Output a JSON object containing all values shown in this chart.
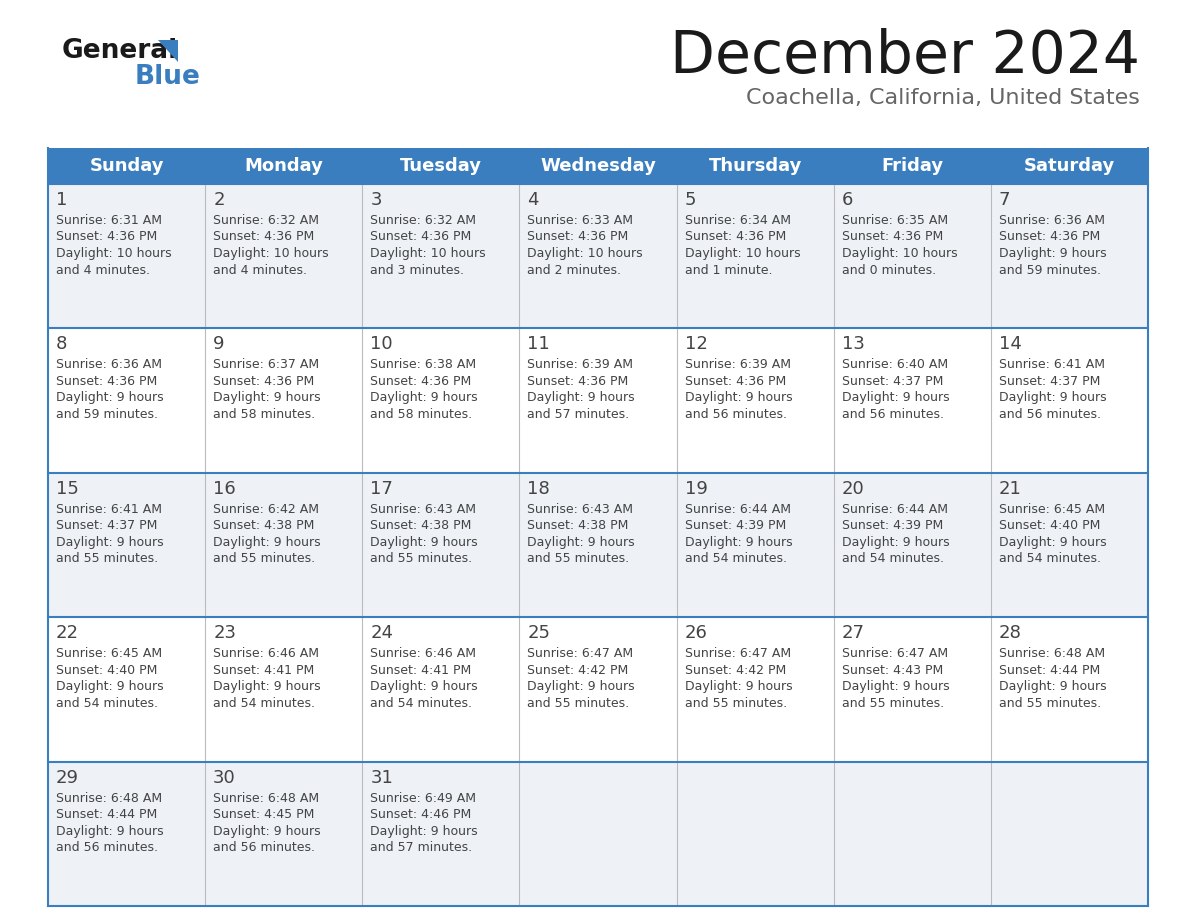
{
  "title": "December 2024",
  "subtitle": "Coachella, California, United States",
  "header_bg": "#3a7ebf",
  "header_text": "#ffffff",
  "day_headers": [
    "Sunday",
    "Monday",
    "Tuesday",
    "Wednesday",
    "Thursday",
    "Friday",
    "Saturday"
  ],
  "row_bg_even": "#eef2f7",
  "row_bg_odd": "#ffffff",
  "border_color": "#3a7ebf",
  "cell_border_color": "#aaaaaa",
  "text_color": "#444444",
  "weeks": [
    [
      {
        "day": 1,
        "sunrise": "6:31 AM",
        "sunset": "4:36 PM",
        "daylight_line1": "Daylight: 10 hours",
        "daylight_line2": "and 4 minutes."
      },
      {
        "day": 2,
        "sunrise": "6:32 AM",
        "sunset": "4:36 PM",
        "daylight_line1": "Daylight: 10 hours",
        "daylight_line2": "and 4 minutes."
      },
      {
        "day": 3,
        "sunrise": "6:32 AM",
        "sunset": "4:36 PM",
        "daylight_line1": "Daylight: 10 hours",
        "daylight_line2": "and 3 minutes."
      },
      {
        "day": 4,
        "sunrise": "6:33 AM",
        "sunset": "4:36 PM",
        "daylight_line1": "Daylight: 10 hours",
        "daylight_line2": "and 2 minutes."
      },
      {
        "day": 5,
        "sunrise": "6:34 AM",
        "sunset": "4:36 PM",
        "daylight_line1": "Daylight: 10 hours",
        "daylight_line2": "and 1 minute."
      },
      {
        "day": 6,
        "sunrise": "6:35 AM",
        "sunset": "4:36 PM",
        "daylight_line1": "Daylight: 10 hours",
        "daylight_line2": "and 0 minutes."
      },
      {
        "day": 7,
        "sunrise": "6:36 AM",
        "sunset": "4:36 PM",
        "daylight_line1": "Daylight: 9 hours",
        "daylight_line2": "and 59 minutes."
      }
    ],
    [
      {
        "day": 8,
        "sunrise": "6:36 AM",
        "sunset": "4:36 PM",
        "daylight_line1": "Daylight: 9 hours",
        "daylight_line2": "and 59 minutes."
      },
      {
        "day": 9,
        "sunrise": "6:37 AM",
        "sunset": "4:36 PM",
        "daylight_line1": "Daylight: 9 hours",
        "daylight_line2": "and 58 minutes."
      },
      {
        "day": 10,
        "sunrise": "6:38 AM",
        "sunset": "4:36 PM",
        "daylight_line1": "Daylight: 9 hours",
        "daylight_line2": "and 58 minutes."
      },
      {
        "day": 11,
        "sunrise": "6:39 AM",
        "sunset": "4:36 PM",
        "daylight_line1": "Daylight: 9 hours",
        "daylight_line2": "and 57 minutes."
      },
      {
        "day": 12,
        "sunrise": "6:39 AM",
        "sunset": "4:36 PM",
        "daylight_line1": "Daylight: 9 hours",
        "daylight_line2": "and 56 minutes."
      },
      {
        "day": 13,
        "sunrise": "6:40 AM",
        "sunset": "4:37 PM",
        "daylight_line1": "Daylight: 9 hours",
        "daylight_line2": "and 56 minutes."
      },
      {
        "day": 14,
        "sunrise": "6:41 AM",
        "sunset": "4:37 PM",
        "daylight_line1": "Daylight: 9 hours",
        "daylight_line2": "and 56 minutes."
      }
    ],
    [
      {
        "day": 15,
        "sunrise": "6:41 AM",
        "sunset": "4:37 PM",
        "daylight_line1": "Daylight: 9 hours",
        "daylight_line2": "and 55 minutes."
      },
      {
        "day": 16,
        "sunrise": "6:42 AM",
        "sunset": "4:38 PM",
        "daylight_line1": "Daylight: 9 hours",
        "daylight_line2": "and 55 minutes."
      },
      {
        "day": 17,
        "sunrise": "6:43 AM",
        "sunset": "4:38 PM",
        "daylight_line1": "Daylight: 9 hours",
        "daylight_line2": "and 55 minutes."
      },
      {
        "day": 18,
        "sunrise": "6:43 AM",
        "sunset": "4:38 PM",
        "daylight_line1": "Daylight: 9 hours",
        "daylight_line2": "and 55 minutes."
      },
      {
        "day": 19,
        "sunrise": "6:44 AM",
        "sunset": "4:39 PM",
        "daylight_line1": "Daylight: 9 hours",
        "daylight_line2": "and 54 minutes."
      },
      {
        "day": 20,
        "sunrise": "6:44 AM",
        "sunset": "4:39 PM",
        "daylight_line1": "Daylight: 9 hours",
        "daylight_line2": "and 54 minutes."
      },
      {
        "day": 21,
        "sunrise": "6:45 AM",
        "sunset": "4:40 PM",
        "daylight_line1": "Daylight: 9 hours",
        "daylight_line2": "and 54 minutes."
      }
    ],
    [
      {
        "day": 22,
        "sunrise": "6:45 AM",
        "sunset": "4:40 PM",
        "daylight_line1": "Daylight: 9 hours",
        "daylight_line2": "and 54 minutes."
      },
      {
        "day": 23,
        "sunrise": "6:46 AM",
        "sunset": "4:41 PM",
        "daylight_line1": "Daylight: 9 hours",
        "daylight_line2": "and 54 minutes."
      },
      {
        "day": 24,
        "sunrise": "6:46 AM",
        "sunset": "4:41 PM",
        "daylight_line1": "Daylight: 9 hours",
        "daylight_line2": "and 54 minutes."
      },
      {
        "day": 25,
        "sunrise": "6:47 AM",
        "sunset": "4:42 PM",
        "daylight_line1": "Daylight: 9 hours",
        "daylight_line2": "and 55 minutes."
      },
      {
        "day": 26,
        "sunrise": "6:47 AM",
        "sunset": "4:42 PM",
        "daylight_line1": "Daylight: 9 hours",
        "daylight_line2": "and 55 minutes."
      },
      {
        "day": 27,
        "sunrise": "6:47 AM",
        "sunset": "4:43 PM",
        "daylight_line1": "Daylight: 9 hours",
        "daylight_line2": "and 55 minutes."
      },
      {
        "day": 28,
        "sunrise": "6:48 AM",
        "sunset": "4:44 PM",
        "daylight_line1": "Daylight: 9 hours",
        "daylight_line2": "and 55 minutes."
      }
    ],
    [
      {
        "day": 29,
        "sunrise": "6:48 AM",
        "sunset": "4:44 PM",
        "daylight_line1": "Daylight: 9 hours",
        "daylight_line2": "and 56 minutes."
      },
      {
        "day": 30,
        "sunrise": "6:48 AM",
        "sunset": "4:45 PM",
        "daylight_line1": "Daylight: 9 hours",
        "daylight_line2": "and 56 minutes."
      },
      {
        "day": 31,
        "sunrise": "6:49 AM",
        "sunset": "4:46 PM",
        "daylight_line1": "Daylight: 9 hours",
        "daylight_line2": "and 57 minutes."
      },
      null,
      null,
      null,
      null
    ]
  ]
}
